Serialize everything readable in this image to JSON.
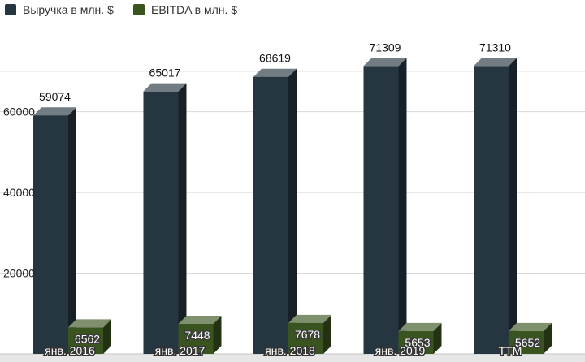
{
  "colors": {
    "revenue": "#263640",
    "ebitda": "#3a5420",
    "grid": "#d9d9d9",
    "floor": "#e6e6e6"
  },
  "chart_data": {
    "type": "bar",
    "title": "",
    "xlabel": "",
    "ylabel": "",
    "categories": [
      "янв. 2016",
      "янв. 2017",
      "янв. 2018",
      "янв. 2019",
      "TTM"
    ],
    "series": [
      {
        "name": "Выручка в млн. $",
        "values": [
          59074,
          65017,
          68619,
          71309,
          71310
        ]
      },
      {
        "name": "EBITDA в млн. $",
        "values": [
          6562,
          7448,
          7678,
          5653,
          5652
        ]
      }
    ],
    "yticks": [
      20000,
      40000,
      60000
    ],
    "ylim": [
      0,
      80000
    ],
    "grid": true,
    "legend_position": "top-left",
    "style": "3d-columns"
  }
}
